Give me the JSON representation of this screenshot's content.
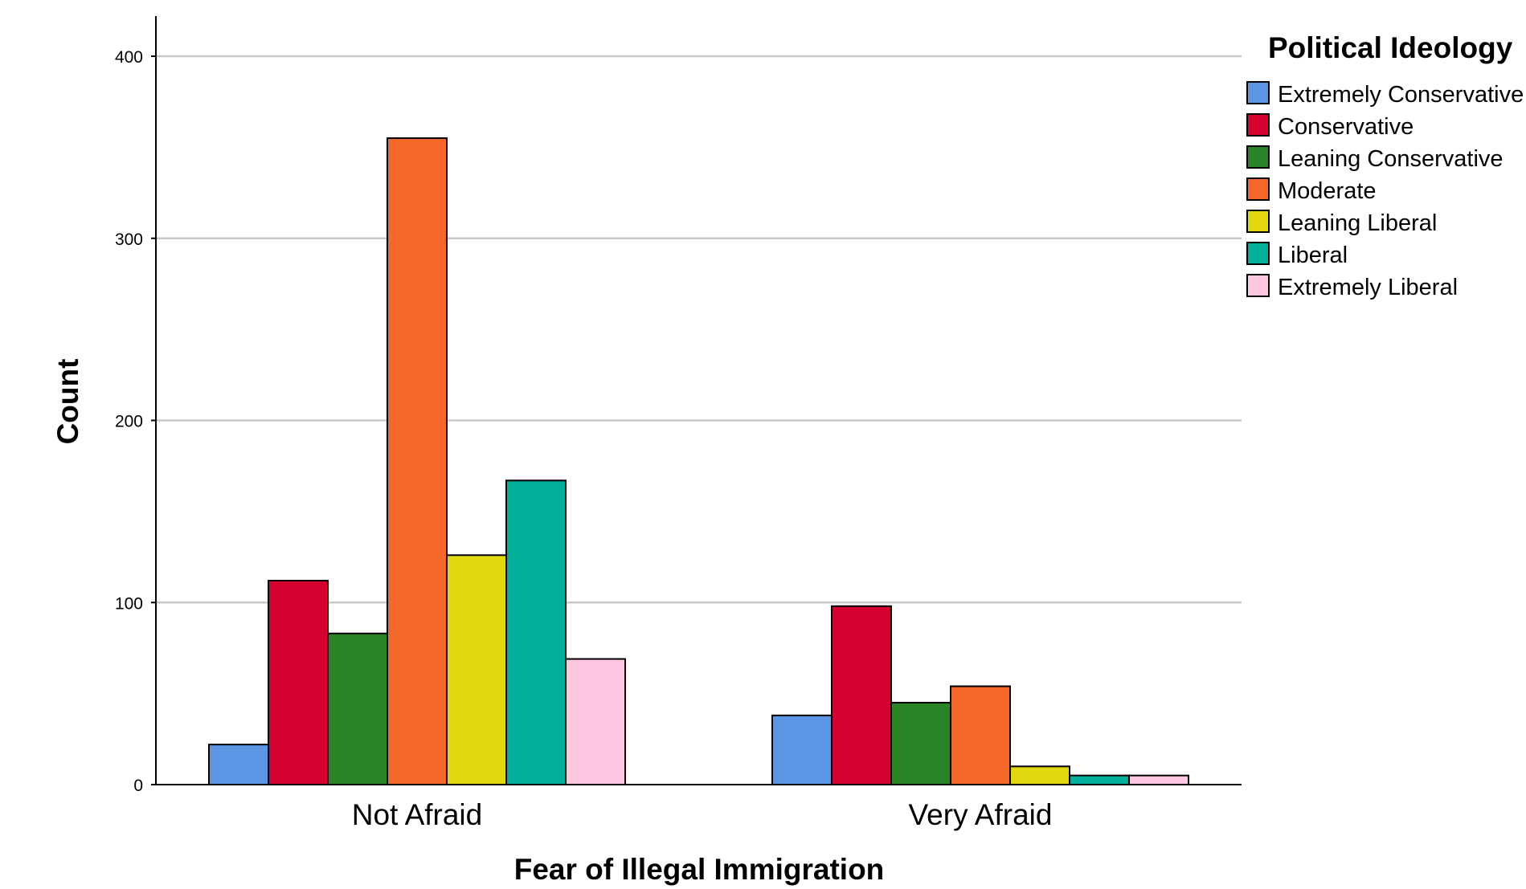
{
  "chart_data": {
    "type": "bar",
    "xlabel": "Fear of Illegal Immigration",
    "ylabel": "Count",
    "ylim": [
      0,
      400
    ],
    "yticks": [
      0,
      100,
      200,
      300,
      400
    ],
    "grid": true,
    "legend_title": "Political Ideology",
    "legend_position": "right",
    "categories": [
      "Not Afraid",
      "Very Afraid"
    ],
    "series": [
      {
        "name": "Extremely Conservative",
        "color": "#5a96e3",
        "values": [
          22,
          38
        ]
      },
      {
        "name": "Conservative",
        "color": "#d6002f",
        "values": [
          112,
          98
        ]
      },
      {
        "name": "Leaning Conservative",
        "color": "#2a8427",
        "values": [
          83,
          45
        ]
      },
      {
        "name": "Moderate",
        "color": "#f4692a",
        "values": [
          355,
          54
        ]
      },
      {
        "name": "Leaning Liberal",
        "color": "#e3d80e",
        "values": [
          126,
          10
        ]
      },
      {
        "name": "Liberal",
        "color": "#00b09b",
        "values": [
          167,
          5
        ]
      },
      {
        "name": "Extremely Liberal",
        "color": "#fdc6e1",
        "values": [
          69,
          5
        ]
      }
    ]
  }
}
